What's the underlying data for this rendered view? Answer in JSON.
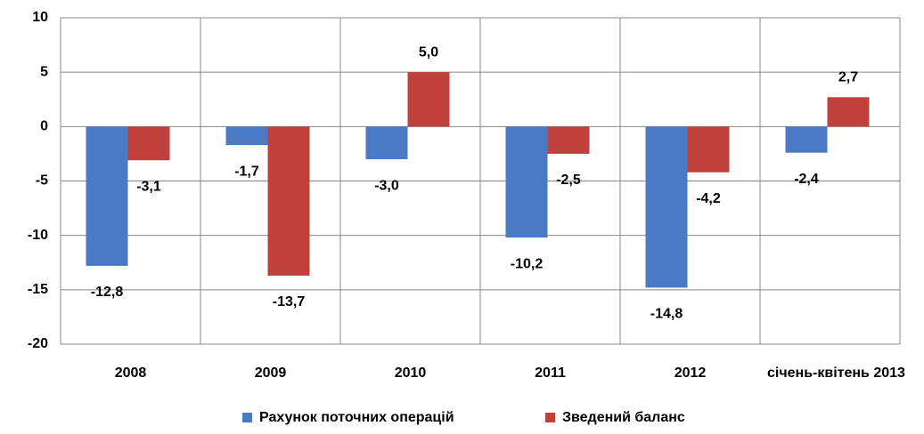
{
  "chart_data": {
    "type": "bar",
    "categories": [
      "2008",
      "2009",
      "2010",
      "2011",
      "2012",
      "січень-квітень 2013"
    ],
    "series": [
      {
        "name": "Рахунок поточних операцій",
        "color": "#4a7ac4",
        "values": [
          -12.8,
          -1.7,
          -3.0,
          -10.2,
          -14.8,
          -2.4
        ],
        "value_labels": [
          "-12,8",
          "-1,7",
          "-3,0",
          "-10,2",
          "-14,8",
          "-2,4"
        ]
      },
      {
        "name": "Зведений баланс",
        "color": "#c0403c",
        "values": [
          -3.1,
          -13.7,
          5.0,
          -2.5,
          -4.2,
          2.7
        ],
        "value_labels": [
          "-3,1",
          "-13,7",
          "5,0",
          "-2,5",
          "-4,2",
          "2,7"
        ]
      }
    ],
    "ylim": [
      -20,
      10
    ],
    "yticks": [
      10,
      5,
      0,
      -5,
      -10,
      -15,
      -20
    ],
    "grid": true,
    "legend": "bottom"
  }
}
